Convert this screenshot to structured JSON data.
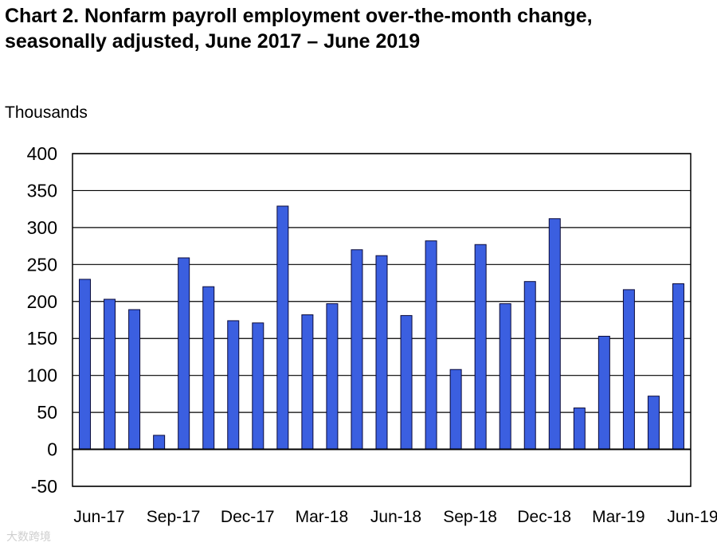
{
  "chart_data": {
    "type": "bar",
    "title": "Chart 2. Nonfarm payroll employment over-the-month change,",
    "title_line2": "seasonally adjusted, June 2017 – June 2019",
    "ylabel": "Thousands",
    "xlabel": "",
    "ylim": [
      -50,
      400
    ],
    "yticks": [
      -50,
      0,
      50,
      100,
      150,
      200,
      250,
      300,
      350,
      400
    ],
    "ytick_labels": [
      "-50",
      "0",
      "50",
      "100",
      "150",
      "200",
      "250",
      "300",
      "350",
      "400"
    ],
    "x_tick_labels": [
      "Jun-17",
      "Sep-17",
      "Dec-17",
      "Mar-18",
      "Jun-18",
      "Sep-18",
      "Dec-18",
      "Mar-19",
      "Jun-19"
    ],
    "categories": [
      "Jun-17",
      "Jul-17",
      "Aug-17",
      "Sep-17",
      "Oct-17",
      "Nov-17",
      "Dec-17",
      "Jan-18",
      "Feb-18",
      "Mar-18",
      "Apr-18",
      "May-18",
      "Jun-18",
      "Jul-18",
      "Aug-18",
      "Sep-18",
      "Oct-18",
      "Nov-18",
      "Dec-18",
      "Jan-19",
      "Feb-19",
      "Mar-19",
      "Apr-19",
      "May-19",
      "Jun-19"
    ],
    "values": [
      230,
      203,
      189,
      19,
      259,
      220,
      174,
      171,
      329,
      182,
      197,
      270,
      262,
      181,
      282,
      108,
      277,
      197,
      227,
      312,
      56,
      153,
      216,
      72,
      224
    ],
    "grid": true,
    "legend": "none",
    "bar_color": "#3b5fe0",
    "bar_edge_color": "#0a0a3a"
  },
  "watermark": "大数跨境"
}
